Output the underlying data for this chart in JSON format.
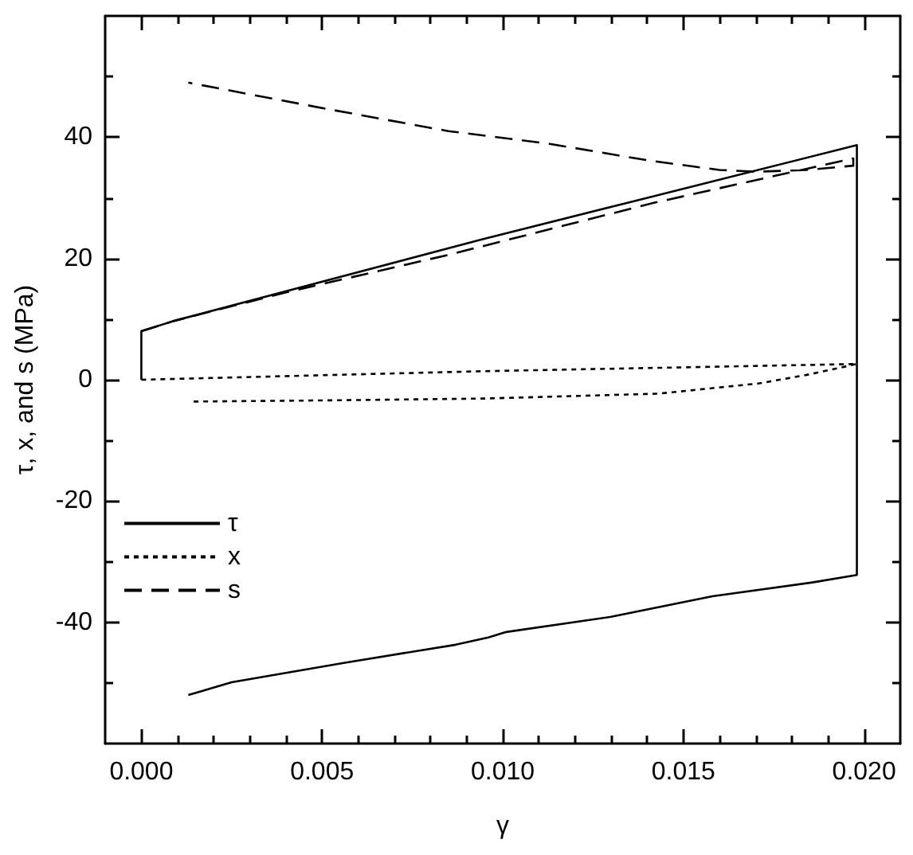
{
  "chart_data": {
    "type": "line",
    "xlabel": "γ",
    "ylabel": "τ, x, and s (MPa)",
    "xlim": [
      -0.001,
      0.021
    ],
    "xticks": [
      {
        "value": 0,
        "label": "0.000"
      },
      {
        "value": 0.001,
        "label": null
      },
      {
        "value": 0.002,
        "label": null
      },
      {
        "value": 0.003,
        "label": null
      },
      {
        "value": 0.004,
        "label": null
      },
      {
        "value": 0.005,
        "label": "0.005"
      },
      {
        "value": 0.006,
        "label": null
      },
      {
        "value": 0.007,
        "label": null
      },
      {
        "value": 0.008,
        "label": null
      },
      {
        "value": 0.009,
        "label": null
      },
      {
        "value": 0.01,
        "label": "0.010"
      },
      {
        "value": 0.011,
        "label": null
      },
      {
        "value": 0.012,
        "label": null
      },
      {
        "value": 0.013,
        "label": null
      },
      {
        "value": 0.014,
        "label": null
      },
      {
        "value": 0.015,
        "label": "0.015"
      },
      {
        "value": 0.016,
        "label": null
      },
      {
        "value": 0.017,
        "label": null
      },
      {
        "value": 0.018,
        "label": null
      },
      {
        "value": 0.019,
        "label": null
      },
      {
        "value": 0.02,
        "label": "0.020"
      }
    ],
    "ylim": [
      -60,
      60
    ],
    "yticks": [
      {
        "value": -50,
        "label": null
      },
      -40,
      {
        "value": -30,
        "label": null
      },
      -20,
      {
        "value": -10,
        "label": null
      },
      0,
      {
        "value": 10,
        "label": null
      },
      20,
      {
        "value": 30,
        "label": null
      },
      40,
      {
        "value": 50,
        "label": null
      }
    ],
    "legend": "bottom left",
    "series": [
      {
        "name": "τ",
        "color": "#000000",
        "line_style": "solid",
        "x": [
          0,
          0,
          0.0009,
          0.0094,
          0.0142,
          0.0198,
          0.0198,
          0.0186,
          0.0158,
          0.013,
          0.0101,
          0.0096,
          0.0087,
          0.0056,
          0.0025,
          0.0013
        ],
        "values": [
          0,
          8,
          9.7,
          23.1,
          30.3,
          38.7,
          -32.2,
          -33.4,
          -35.7,
          -39.1,
          -41.6,
          -42.5,
          -43.7,
          -46.7,
          -49.9,
          -52
        ]
      },
      {
        "name": "x",
        "color": "#000000",
        "line_style": "dotted",
        "x": [
          0,
          0.0094,
          0.0198,
          0.0185,
          0.0171,
          0.0143,
          0.0095,
          0.0052,
          0.0014
        ],
        "values": [
          0,
          1.4,
          2.6,
          0.9,
          -0.6,
          -2.3,
          -3.1,
          -3.4,
          -3.6
        ]
      },
      {
        "name": "s",
        "color": "#000000",
        "line_style": "dashed",
        "x": [
          0,
          0.0009,
          0.004,
          0.0085,
          0.0142,
          0.0197,
          0.0197,
          0.0184,
          0.017,
          0.016,
          0.0141,
          0.0113,
          0.0085,
          0.0051,
          0.0013
        ],
        "values": [
          8,
          9.7,
          14.4,
          20.6,
          29.2,
          36.5,
          35.3,
          34.6,
          34.3,
          34.6,
          36.1,
          38.9,
          41,
          44.7,
          49
        ]
      }
    ]
  }
}
